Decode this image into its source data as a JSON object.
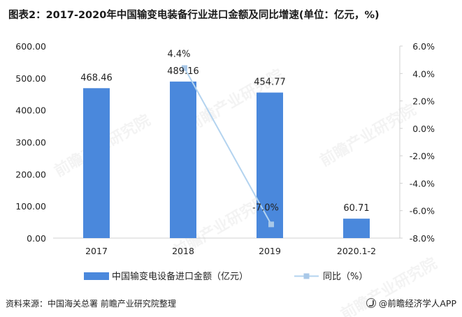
{
  "title": "图表2：2017-2020年中国输变电装备行业进口金额及同比增速(单位：亿元，%)",
  "footer": {
    "source": "资料来源：中国海关总署 前瞻产业研究院整理",
    "brand": "@前瞻经济学人APP",
    "brand_icon": "qianzhan-logo-icon"
  },
  "watermark": "前瞻产业研究院",
  "colors": {
    "bar": "#4a88dc",
    "line": "#b3d3ef",
    "marker": "#a9c8e8"
  },
  "chart_data": {
    "type": "bar",
    "categories": [
      "2017",
      "2018",
      "2019",
      "2020.1-2"
    ],
    "series": [
      {
        "name": "中国输变电设备进口金额（亿元）",
        "type": "bar",
        "axis": "left",
        "values": [
          468.46,
          489.16,
          454.77,
          60.71
        ],
        "labels": [
          "468.46",
          "489.16",
          "454.77",
          "60.71"
        ]
      },
      {
        "name": "同比（%）",
        "type": "line",
        "axis": "right",
        "values": [
          null,
          4.4,
          -7.0,
          null
        ],
        "labels": [
          "",
          "4.4%",
          "-7.0%",
          ""
        ]
      }
    ],
    "y_left": {
      "min": 0,
      "max": 600,
      "step": 100,
      "ticks": [
        "0.00",
        "100.00",
        "200.00",
        "300.00",
        "400.00",
        "500.00",
        "600.00"
      ]
    },
    "y_right": {
      "min": -8,
      "max": 6,
      "step": 2,
      "ticks": [
        "-8.0%",
        "-6.0%",
        "-4.0%",
        "-2.0%",
        "0.0%",
        "2.0%",
        "4.0%",
        "6.0%"
      ]
    },
    "grid": false,
    "legend_position": "bottom"
  }
}
